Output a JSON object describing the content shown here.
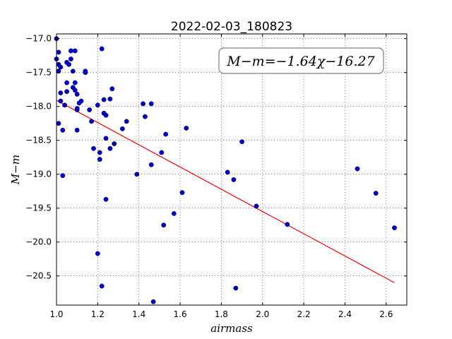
{
  "chart_data": {
    "type": "scatter",
    "title": "2022-02-03_180823",
    "xlabel": "airmass",
    "ylabel": "M−m",
    "xlim": [
      1.0,
      2.7
    ],
    "ylim": [
      -20.93,
      -16.93
    ],
    "x_ticks": [
      1.0,
      1.2,
      1.4,
      1.6,
      1.8,
      2.0,
      2.2,
      2.4,
      2.6
    ],
    "x_tick_labels": [
      "1.0",
      "1.2",
      "1.4",
      "1.6",
      "1.8",
      "2.0",
      "2.2",
      "2.4",
      "2.6"
    ],
    "y_ticks": [
      -17.0,
      -17.5,
      -18.0,
      -18.5,
      -19.0,
      -19.5,
      -20.0,
      -20.5
    ],
    "y_tick_labels": [
      "−17.0",
      "−17.5",
      "−18.0",
      "−18.5",
      "−19.0",
      "−19.5",
      "−20.0",
      "−20.5"
    ],
    "grid": true,
    "annotation": "M−m=−1.64χ−16.27",
    "fit": {
      "slope": -1.64,
      "intercept": -16.27,
      "x_range": [
        1.0,
        2.64
      ],
      "color": "#ff0000"
    },
    "marker_color": "#0000cc",
    "points": [
      [
        1.0,
        -17.0
      ],
      [
        1.01,
        -17.2
      ],
      [
        1.0,
        -17.3
      ],
      [
        1.01,
        -17.38
      ],
      [
        1.02,
        -17.42
      ],
      [
        1.01,
        -17.48
      ],
      [
        1.02,
        -17.8
      ],
      [
        1.02,
        -17.92
      ],
      [
        1.04,
        -17.98
      ],
      [
        1.01,
        -18.25
      ],
      [
        1.03,
        -18.35
      ],
      [
        1.03,
        -19.02
      ],
      [
        1.05,
        -17.35
      ],
      [
        1.06,
        -17.38
      ],
      [
        1.05,
        -17.65
      ],
      [
        1.05,
        -17.78
      ],
      [
        1.07,
        -17.18
      ],
      [
        1.07,
        -17.3
      ],
      [
        1.08,
        -17.48
      ],
      [
        1.08,
        -17.72
      ],
      [
        1.09,
        -17.18
      ],
      [
        1.09,
        -17.65
      ],
      [
        1.09,
        -17.76
      ],
      [
        1.1,
        -17.82
      ],
      [
        1.1,
        -18.03
      ],
      [
        1.1,
        -18.05
      ],
      [
        1.1,
        -18.35
      ],
      [
        1.11,
        -17.95
      ],
      [
        1.12,
        -17.92
      ],
      [
        1.14,
        -17.5
      ],
      [
        1.14,
        -17.48
      ],
      [
        1.16,
        -18.05
      ],
      [
        1.17,
        -18.22
      ],
      [
        1.18,
        -18.62
      ],
      [
        1.2,
        -17.98
      ],
      [
        1.21,
        -18.68
      ],
      [
        1.21,
        -18.78
      ],
      [
        1.22,
        -17.15
      ],
      [
        1.23,
        -17.9
      ],
      [
        1.23,
        -18.1
      ],
      [
        1.24,
        -18.13
      ],
      [
        1.24,
        -18.47
      ],
      [
        1.24,
        -19.37
      ],
      [
        1.26,
        -17.89
      ],
      [
        1.26,
        -18.62
      ],
      [
        1.27,
        -17.74
      ],
      [
        1.28,
        -18.55
      ],
      [
        1.2,
        -20.17
      ],
      [
        1.22,
        -20.65
      ],
      [
        1.32,
        -18.33
      ],
      [
        1.34,
        -18.22
      ],
      [
        1.39,
        -19.0
      ],
      [
        1.42,
        -17.96
      ],
      [
        1.43,
        -18.15
      ],
      [
        1.46,
        -17.96
      ],
      [
        1.46,
        -18.86
      ],
      [
        1.47,
        -20.88
      ],
      [
        1.51,
        -18.68
      ],
      [
        1.52,
        -19.75
      ],
      [
        1.53,
        -18.41
      ],
      [
        1.57,
        -19.58
      ],
      [
        1.61,
        -19.27
      ],
      [
        1.63,
        -18.32
      ],
      [
        1.83,
        -18.97
      ],
      [
        1.86,
        -19.08
      ],
      [
        1.87,
        -20.68
      ],
      [
        1.9,
        -18.52
      ],
      [
        1.97,
        -19.47
      ],
      [
        2.12,
        -19.74
      ],
      [
        2.46,
        -18.92
      ],
      [
        2.55,
        -19.28
      ],
      [
        2.64,
        -19.79
      ]
    ]
  }
}
